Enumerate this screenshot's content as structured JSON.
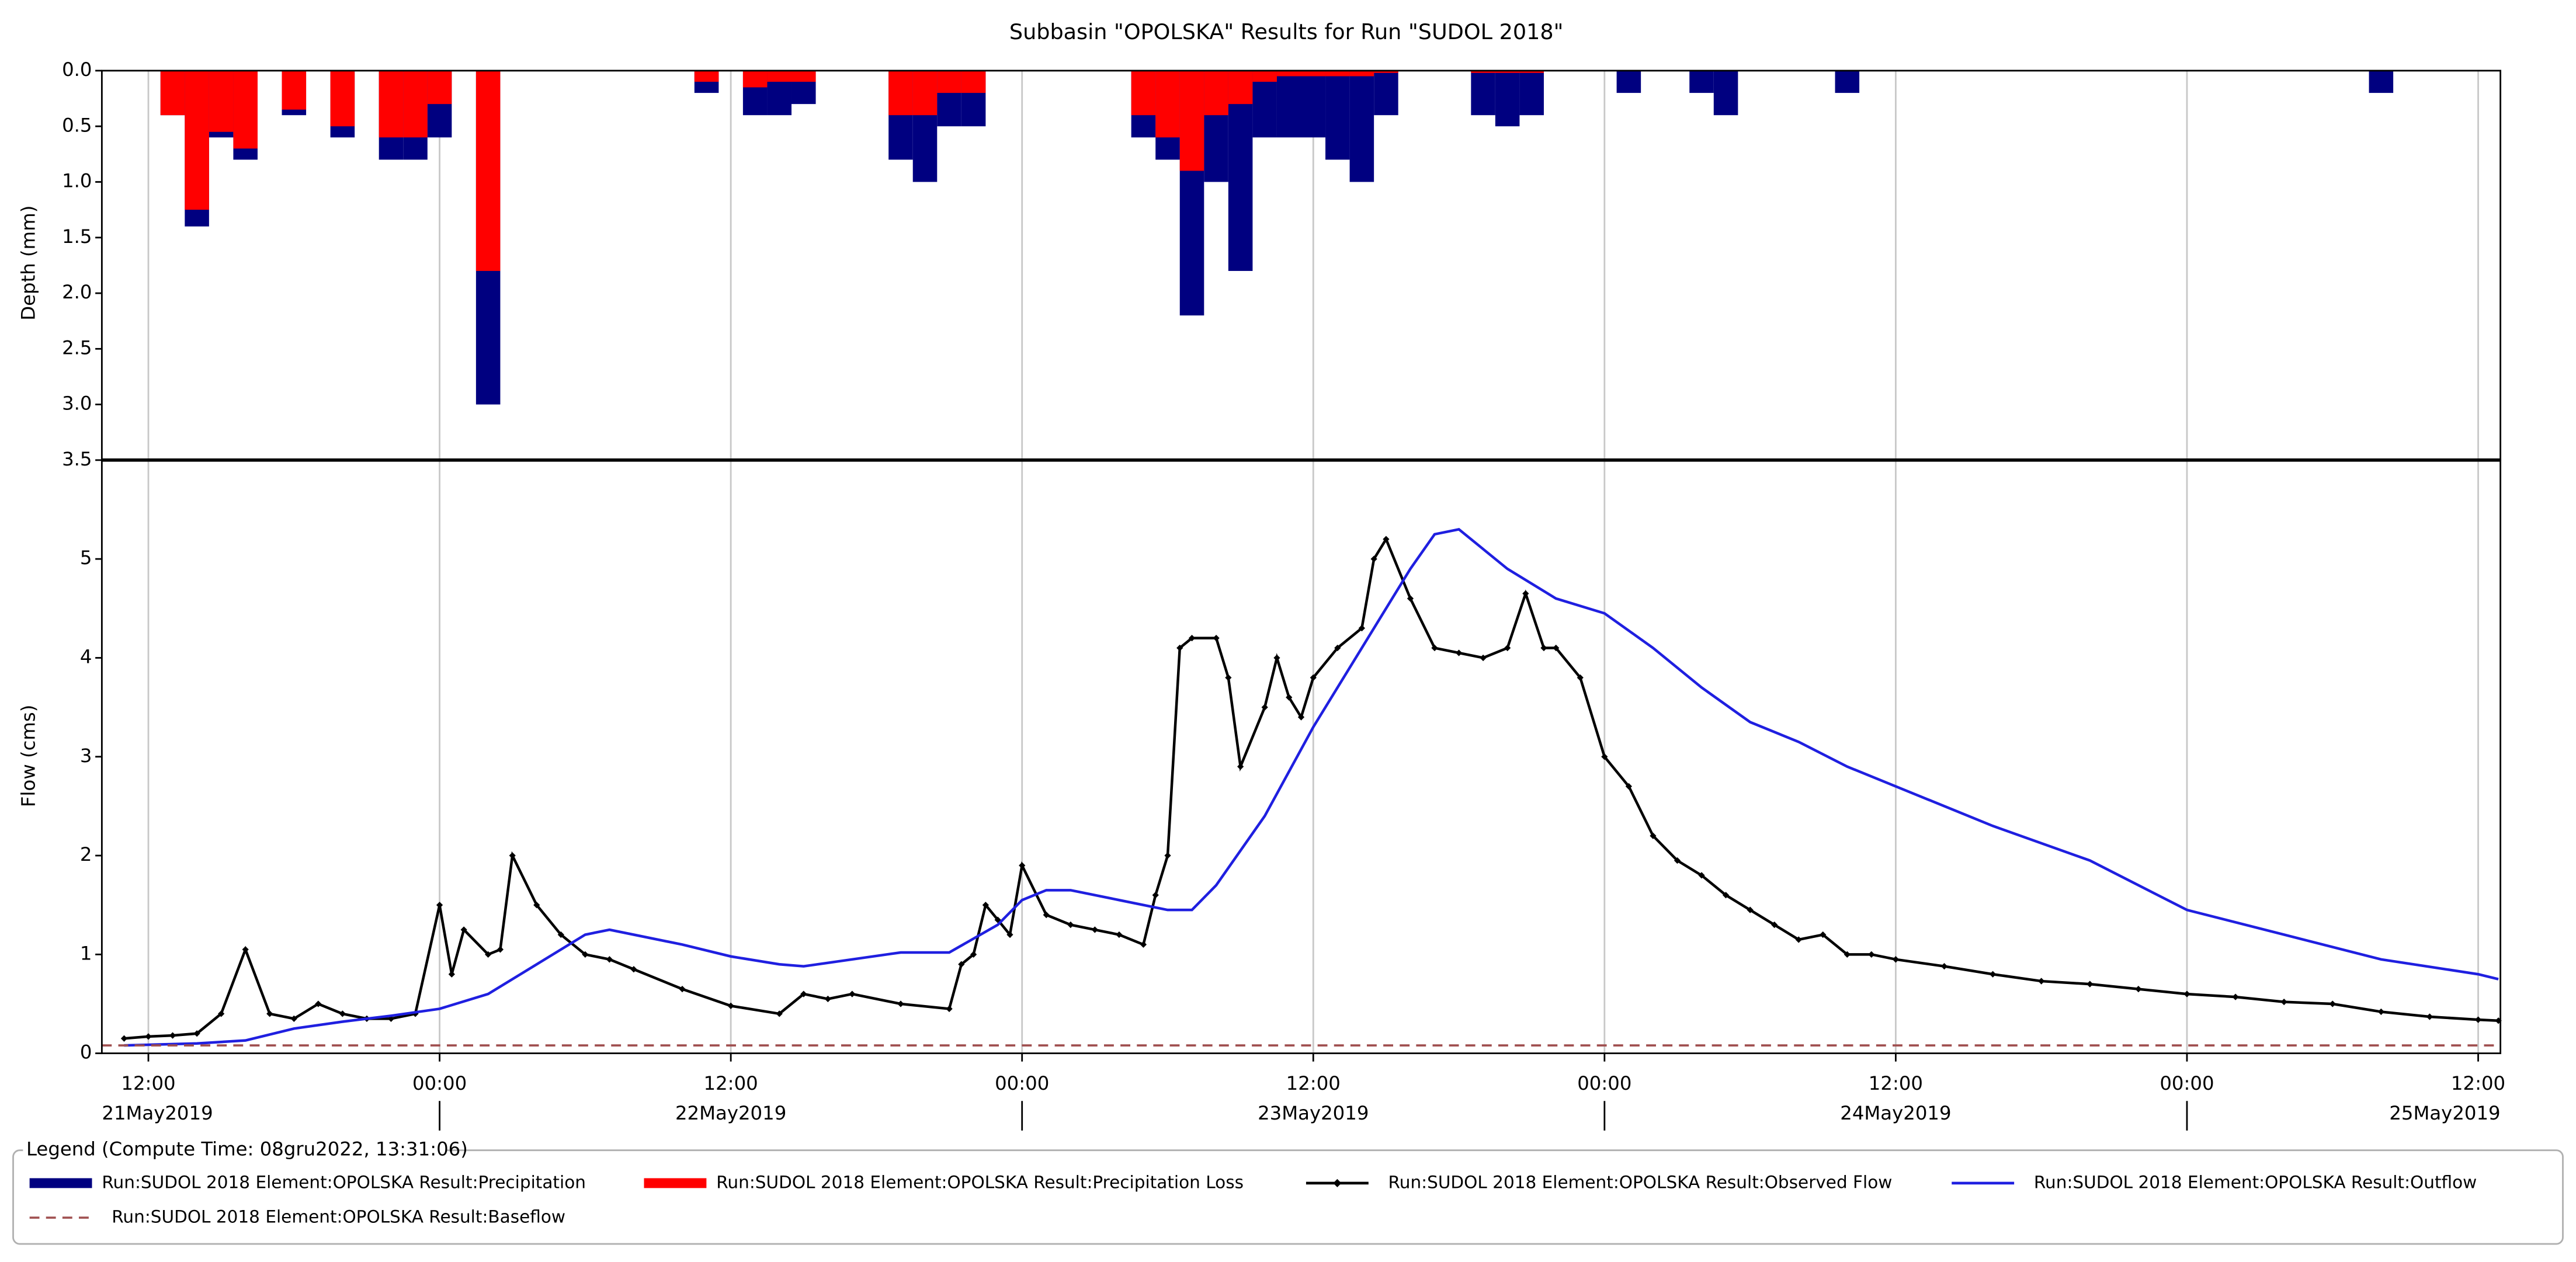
{
  "title": "Subbasin \"OPOLSKA\" Results for Run \"SUDOL 2018\"",
  "chart_data": [
    {
      "type": "bar",
      "inverted": true,
      "ylabel": "Depth (mm)",
      "ylim": [
        0,
        3.5
      ],
      "yticks": [
        {
          "value": 0,
          "label": "0.0"
        },
        {
          "value": 0.5,
          "label": "0.5"
        },
        {
          "value": 1,
          "label": "1.0"
        },
        {
          "value": 1.5,
          "label": "1.5"
        },
        {
          "value": 2,
          "label": "2.0"
        },
        {
          "value": 2.5,
          "label": "2.5"
        },
        {
          "value": 3,
          "label": "3.0"
        },
        {
          "value": 3.5,
          "label": "3.5"
        }
      ],
      "x": [
        "2019-05-21T13:00",
        "2019-05-21T14:00",
        "2019-05-21T15:00",
        "2019-05-21T16:00",
        "2019-05-21T18:00",
        "2019-05-21T20:00",
        "2019-05-21T22:00",
        "2019-05-21T23:00",
        "2019-05-22T00:00",
        "2019-05-22T02:00",
        "2019-05-22T11:00",
        "2019-05-22T13:00",
        "2019-05-22T14:00",
        "2019-05-22T15:00",
        "2019-05-22T19:00",
        "2019-05-22T20:00",
        "2019-05-22T21:00",
        "2019-05-22T22:00",
        "2019-05-23T05:00",
        "2019-05-23T06:00",
        "2019-05-23T07:00",
        "2019-05-23T08:00",
        "2019-05-23T09:00",
        "2019-05-23T10:00",
        "2019-05-23T11:00",
        "2019-05-23T12:00",
        "2019-05-23T13:00",
        "2019-05-23T14:00",
        "2019-05-23T15:00",
        "2019-05-23T19:00",
        "2019-05-23T20:00",
        "2019-05-23T21:00",
        "2019-05-24T01:00",
        "2019-05-24T04:00",
        "2019-05-24T05:00",
        "2019-05-24T10:00",
        "2019-05-25T08:00"
      ],
      "series": [
        {
          "name": "Run:SUDOL 2018 Element:OPOLSKA Result:Precipitation",
          "color": "#000080",
          "values": [
            0.4,
            1.4,
            0.6,
            0.8,
            0.4,
            0.6,
            0.8,
            0.8,
            0.6,
            3.0,
            0.2,
            0.4,
            0.4,
            0.3,
            0.8,
            1.0,
            0.5,
            0.5,
            0.6,
            0.8,
            2.2,
            1.0,
            1.8,
            0.6,
            0.6,
            0.6,
            0.8,
            1.0,
            0.4,
            0.4,
            0.5,
            0.4,
            0.2,
            0.2,
            0.4,
            0.2,
            0.2
          ]
        },
        {
          "name": "Run:SUDOL 2018 Element:OPOLSKA Result:Precipitation Loss",
          "color": "#ff0000",
          "values": [
            0.4,
            1.25,
            0.55,
            0.7,
            0.35,
            0.5,
            0.6,
            0.6,
            0.3,
            1.8,
            0.1,
            0.15,
            0.1,
            0.1,
            0.4,
            0.4,
            0.2,
            0.2,
            0.4,
            0.6,
            0.9,
            0.4,
            0.3,
            0.1,
            0.05,
            0.05,
            0.05,
            0.05,
            0.02,
            0.02,
            0.02,
            0.02,
            0,
            0,
            0,
            0,
            0
          ]
        }
      ]
    },
    {
      "type": "line",
      "ylabel": "Flow (cms)",
      "grid": "x",
      "ylim": [
        0,
        6
      ],
      "yticks": [
        0,
        1,
        2,
        3,
        4,
        5
      ],
      "xlim": [
        "2019-05-21T10:05",
        "2019-05-25T12:55"
      ],
      "xticks": [
        {
          "value": "2019-05-21T12:00",
          "label": "12:00"
        },
        {
          "value": "2019-05-22T00:00",
          "label": "00:00"
        },
        {
          "value": "2019-05-22T12:00",
          "label": "12:00"
        },
        {
          "value": "2019-05-23T00:00",
          "label": "00:00"
        },
        {
          "value": "2019-05-23T12:00",
          "label": "12:00"
        },
        {
          "value": "2019-05-24T00:00",
          "label": "00:00"
        },
        {
          "value": "2019-05-24T12:00",
          "label": "12:00"
        },
        {
          "value": "2019-05-25T00:00",
          "label": "00:00"
        },
        {
          "value": "2019-05-25T12:00",
          "label": "12:00"
        }
      ],
      "date_labels": [
        {
          "value": "2019-05-21T00:00",
          "label": "21May2019"
        },
        {
          "value": "2019-05-22T00:00",
          "label": "22May2019"
        },
        {
          "value": "2019-05-23T00:00",
          "label": "23May2019"
        },
        {
          "value": "2019-05-24T00:00",
          "label": "24May2019"
        },
        {
          "value": "2019-05-25T00:00",
          "label": "25May2019"
        }
      ],
      "series": [
        {
          "name": "Run:SUDOL 2018 Element:OPOLSKA Result:Observed Flow",
          "color": "#000000",
          "marker": "diamond",
          "x": [
            "2019-05-21T11:00",
            "2019-05-21T12:00",
            "2019-05-21T13:00",
            "2019-05-21T14:00",
            "2019-05-21T15:00",
            "2019-05-21T16:00",
            "2019-05-21T17:00",
            "2019-05-21T18:00",
            "2019-05-21T19:00",
            "2019-05-21T20:00",
            "2019-05-21T21:00",
            "2019-05-21T22:00",
            "2019-05-21T23:00",
            "2019-05-22T00:00",
            "2019-05-22T00:30",
            "2019-05-22T01:00",
            "2019-05-22T02:00",
            "2019-05-22T02:30",
            "2019-05-22T03:00",
            "2019-05-22T04:00",
            "2019-05-22T05:00",
            "2019-05-22T06:00",
            "2019-05-22T07:00",
            "2019-05-22T08:00",
            "2019-05-22T10:00",
            "2019-05-22T12:00",
            "2019-05-22T14:00",
            "2019-05-22T15:00",
            "2019-05-22T16:00",
            "2019-05-22T17:00",
            "2019-05-22T19:00",
            "2019-05-22T21:00",
            "2019-05-22T21:30",
            "2019-05-22T22:00",
            "2019-05-22T22:30",
            "2019-05-22T23:00",
            "2019-05-22T23:30",
            "2019-05-23T00:00",
            "2019-05-23T01:00",
            "2019-05-23T02:00",
            "2019-05-23T03:00",
            "2019-05-23T04:00",
            "2019-05-23T05:00",
            "2019-05-23T05:30",
            "2019-05-23T06:00",
            "2019-05-23T06:30",
            "2019-05-23T07:00",
            "2019-05-23T08:00",
            "2019-05-23T08:30",
            "2019-05-23T09:00",
            "2019-05-23T10:00",
            "2019-05-23T10:30",
            "2019-05-23T11:00",
            "2019-05-23T11:30",
            "2019-05-23T12:00",
            "2019-05-23T13:00",
            "2019-05-23T14:00",
            "2019-05-23T14:30",
            "2019-05-23T15:00",
            "2019-05-23T16:00",
            "2019-05-23T17:00",
            "2019-05-23T18:00",
            "2019-05-23T19:00",
            "2019-05-23T20:00",
            "2019-05-23T20:45",
            "2019-05-23T21:30",
            "2019-05-23T22:00",
            "2019-05-23T23:00",
            "2019-05-24T00:00",
            "2019-05-24T01:00",
            "2019-05-24T02:00",
            "2019-05-24T03:00",
            "2019-05-24T04:00",
            "2019-05-24T05:00",
            "2019-05-24T06:00",
            "2019-05-24T07:00",
            "2019-05-24T08:00",
            "2019-05-24T09:00",
            "2019-05-24T10:00",
            "2019-05-24T11:00",
            "2019-05-24T12:00",
            "2019-05-24T14:00",
            "2019-05-24T16:00",
            "2019-05-24T18:00",
            "2019-05-24T20:00",
            "2019-05-24T22:00",
            "2019-05-25T00:00",
            "2019-05-25T02:00",
            "2019-05-25T04:00",
            "2019-05-25T06:00",
            "2019-05-25T08:00",
            "2019-05-25T10:00",
            "2019-05-25T12:00",
            "2019-05-25T12:50"
          ],
          "values": [
            0.15,
            0.17,
            0.18,
            0.2,
            0.4,
            1.05,
            0.4,
            0.35,
            0.5,
            0.4,
            0.35,
            0.35,
            0.4,
            1.5,
            0.8,
            1.25,
            1.0,
            1.05,
            2.0,
            1.5,
            1.2,
            1.0,
            0.95,
            0.85,
            0.65,
            0.48,
            0.4,
            0.6,
            0.55,
            0.6,
            0.5,
            0.45,
            0.9,
            1.0,
            1.5,
            1.35,
            1.2,
            1.9,
            1.4,
            1.3,
            1.25,
            1.2,
            1.1,
            1.6,
            2.0,
            4.1,
            4.2,
            4.2,
            3.8,
            2.9,
            3.5,
            4.0,
            3.6,
            3.4,
            3.8,
            4.1,
            4.3,
            5.0,
            5.2,
            4.6,
            4.1,
            4.05,
            4.0,
            4.1,
            4.65,
            4.1,
            4.1,
            3.8,
            3.0,
            2.7,
            2.2,
            1.95,
            1.8,
            1.6,
            1.45,
            1.3,
            1.15,
            1.2,
            1.0,
            1.0,
            0.95,
            0.88,
            0.8,
            0.73,
            0.7,
            0.65,
            0.6,
            0.57,
            0.52,
            0.5,
            0.42,
            0.37,
            0.34,
            0.33
          ]
        },
        {
          "name": "Run:SUDOL 2018 Element:OPOLSKA Result:Outflow",
          "color": "#1f1fe0",
          "x": [
            "2019-05-21T11:00",
            "2019-05-21T14:00",
            "2019-05-21T16:00",
            "2019-05-21T18:00",
            "2019-05-21T20:00",
            "2019-05-21T22:00",
            "2019-05-22T00:00",
            "2019-05-22T02:00",
            "2019-05-22T04:00",
            "2019-05-22T06:00",
            "2019-05-22T07:00",
            "2019-05-22T08:00",
            "2019-05-22T10:00",
            "2019-05-22T12:00",
            "2019-05-22T14:00",
            "2019-05-22T15:00",
            "2019-05-22T17:00",
            "2019-05-22T19:00",
            "2019-05-22T21:00",
            "2019-05-22T23:00",
            "2019-05-23T00:00",
            "2019-05-23T01:00",
            "2019-05-23T02:00",
            "2019-05-23T04:00",
            "2019-05-23T06:00",
            "2019-05-23T07:00",
            "2019-05-23T08:00",
            "2019-05-23T10:00",
            "2019-05-23T12:00",
            "2019-05-23T14:00",
            "2019-05-23T16:00",
            "2019-05-23T17:00",
            "2019-05-23T18:00",
            "2019-05-23T20:00",
            "2019-05-23T22:00",
            "2019-05-24T00:00",
            "2019-05-24T02:00",
            "2019-05-24T04:00",
            "2019-05-24T06:00",
            "2019-05-24T08:00",
            "2019-05-24T10:00",
            "2019-05-24T12:00",
            "2019-05-24T16:00",
            "2019-05-24T20:00",
            "2019-05-25T00:00",
            "2019-05-25T04:00",
            "2019-05-25T08:00",
            "2019-05-25T12:00",
            "2019-05-25T12:50"
          ],
          "values": [
            0.08,
            0.1,
            0.13,
            0.25,
            0.32,
            0.38,
            0.45,
            0.6,
            0.9,
            1.2,
            1.25,
            1.2,
            1.1,
            0.98,
            0.9,
            0.88,
            0.95,
            1.02,
            1.02,
            1.3,
            1.55,
            1.65,
            1.65,
            1.55,
            1.45,
            1.45,
            1.7,
            2.4,
            3.3,
            4.1,
            4.9,
            5.25,
            5.3,
            4.9,
            4.6,
            4.45,
            4.1,
            3.7,
            3.35,
            3.15,
            2.9,
            2.7,
            2.3,
            1.95,
            1.45,
            1.2,
            0.95,
            0.8,
            0.75
          ]
        },
        {
          "name": "Run:SUDOL 2018 Element:OPOLSKA Result:Baseflow",
          "color": "#a05050",
          "dash": true,
          "x": [
            "2019-05-21T10:05",
            "2019-05-25T12:55"
          ],
          "values": [
            0.08,
            0.08
          ]
        }
      ]
    }
  ],
  "legend": {
    "title": "Legend (Compute Time: 08gru2022, 13:31:06)"
  }
}
